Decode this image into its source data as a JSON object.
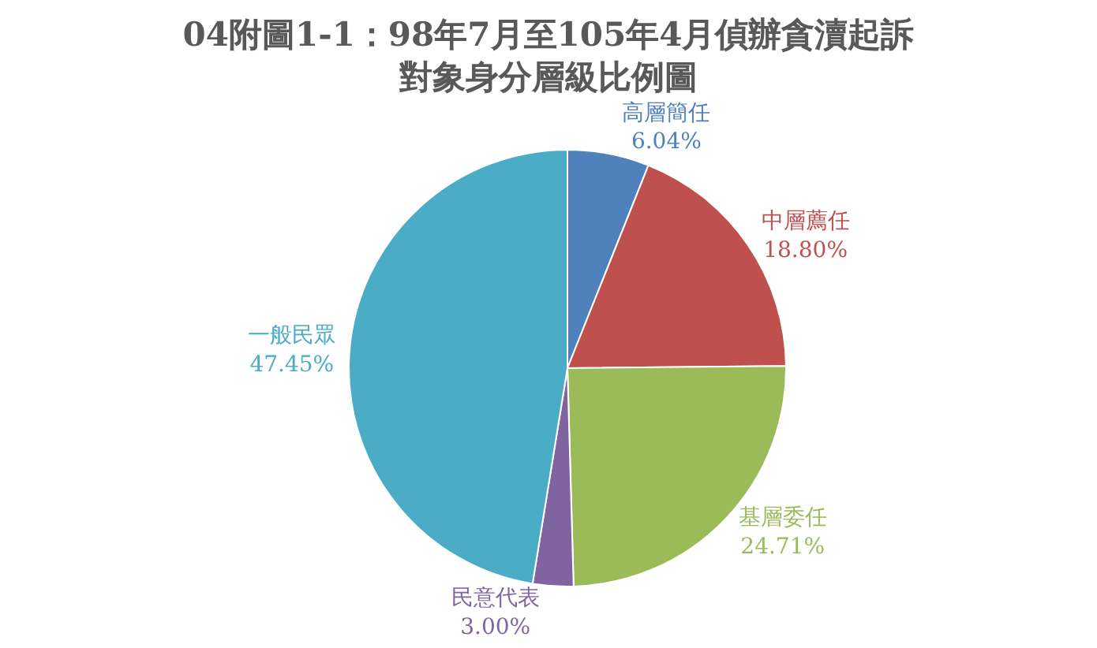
{
  "chart_data": {
    "type": "pie",
    "title": "04附圖1-1：98年7月至105年4月偵辦貪瀆起訴",
    "subtitle": "對象身分層級比例圖",
    "categories": [
      "高層簡任",
      "中層薦任",
      "基層委任",
      "民意代表",
      "一般民眾"
    ],
    "values": [
      6.04,
      18.8,
      24.71,
      3.0,
      47.45
    ],
    "value_labels": [
      "6.04%",
      "18.80%",
      "24.71%",
      "3.00%",
      "47.45%"
    ],
    "colors": [
      "#4f81bd",
      "#c0504d",
      "#9bbb59",
      "#8064a2",
      "#4bacc6"
    ],
    "legend": false
  }
}
